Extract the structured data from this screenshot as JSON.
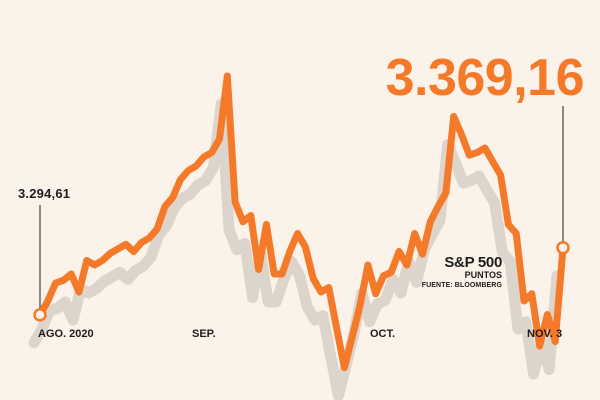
{
  "chart_data": {
    "type": "line",
    "series": [
      {
        "name": "S&P 500",
        "values": [
          3294.61,
          3310,
          3330,
          3333,
          3340,
          3320,
          3355,
          3350,
          3355,
          3363,
          3368,
          3373,
          3365,
          3375,
          3380,
          3390,
          3415,
          3425,
          3445,
          3455,
          3460,
          3470,
          3475,
          3490,
          3560,
          3420,
          3398,
          3405,
          3345,
          3395,
          3340,
          3340,
          3365,
          3385,
          3370,
          3335,
          3320,
          3325,
          3280,
          3236,
          3270,
          3305,
          3350,
          3318,
          3338,
          3342,
          3365,
          3350,
          3385,
          3362,
          3398,
          3415,
          3430,
          3515,
          3495,
          3472,
          3475,
          3480,
          3465,
          3450,
          3395,
          3385,
          3310,
          3318,
          3260,
          3295,
          3265,
          3369.16
        ],
        "color": "#f47a2a"
      }
    ],
    "x_ticks": [
      "AGO. 2020",
      "SEP.",
      "OCT.",
      "NOV. 3"
    ],
    "title": "S&P 500",
    "ylabel": "PUNTOS",
    "source": "FUENTE: BLOOMBERG",
    "annotations": {
      "start": "3.294,61",
      "end": "3.369,16"
    },
    "ylim": [
      3200,
      3600
    ],
    "grid": false,
    "shadow_color": "#d9d0c8",
    "marker_fill": "#fbf2ea"
  }
}
